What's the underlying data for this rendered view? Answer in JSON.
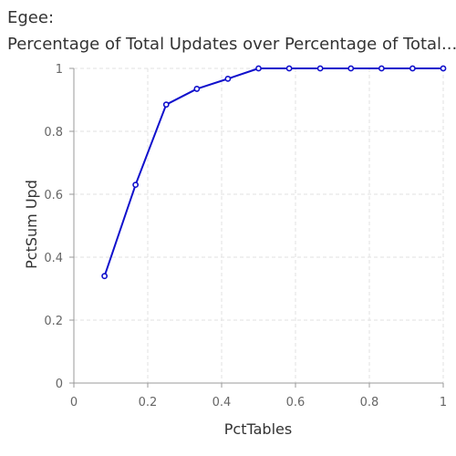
{
  "chart_data": {
    "type": "line",
    "title": "Egee:",
    "subtitle": "Percentage of Total Updates over Percentage of Total...",
    "xlabel": "PctTables",
    "ylabel": "PctSum Upd",
    "xlim": [
      0,
      1
    ],
    "ylim": [
      0,
      1
    ],
    "x_ticks": [
      "0",
      "0.2",
      "0.4",
      "0.6",
      "0.8",
      "1"
    ],
    "y_ticks": [
      "0",
      "0.2",
      "0.4",
      "0.6",
      "0.8",
      "1"
    ],
    "grid": true,
    "series": [
      {
        "color": "#1010cc",
        "points": [
          {
            "x": 0.083,
            "y": 0.34
          },
          {
            "x": 0.167,
            "y": 0.63
          },
          {
            "x": 0.25,
            "y": 0.885
          },
          {
            "x": 0.333,
            "y": 0.935
          },
          {
            "x": 0.417,
            "y": 0.967
          },
          {
            "x": 0.5,
            "y": 1.0
          },
          {
            "x": 0.583,
            "y": 1.0
          },
          {
            "x": 0.667,
            "y": 1.0
          },
          {
            "x": 0.75,
            "y": 1.0
          },
          {
            "x": 0.833,
            "y": 1.0
          },
          {
            "x": 0.917,
            "y": 1.0
          },
          {
            "x": 1.0,
            "y": 1.0
          }
        ]
      }
    ]
  }
}
